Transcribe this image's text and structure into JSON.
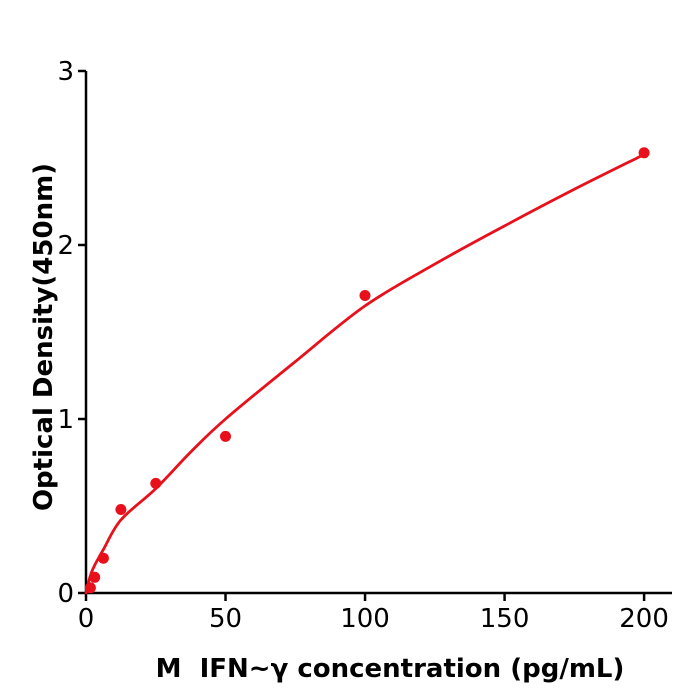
{
  "chart_data": {
    "type": "scatter",
    "title": "",
    "xlabel": "M  IFN~γ concentration (pg/mL)",
    "ylabel": "Optical Density(450nm)",
    "series": [
      {
        "name": "standard-curve-points",
        "x": [
          1.5625,
          3.125,
          6.25,
          12.5,
          25,
          50,
          100,
          200
        ],
        "y": [
          0.03,
          0.09,
          0.2,
          0.48,
          0.63,
          0.9,
          1.71,
          2.53
        ]
      }
    ],
    "fit_curve": {
      "name": "fitted-curve",
      "x": [
        0,
        1.56,
        3.125,
        6.25,
        12.5,
        25,
        37.5,
        50,
        75,
        100,
        125,
        150,
        175,
        200
      ],
      "y": [
        0,
        0.1,
        0.16,
        0.25,
        0.42,
        0.6,
        0.81,
        1.0,
        1.33,
        1.65,
        1.89,
        2.11,
        2.32,
        2.52
      ]
    },
    "x_ticks": [
      0,
      50,
      100,
      150,
      200
    ],
    "y_ticks": [
      0,
      1,
      2,
      3
    ],
    "xlim": [
      0,
      210
    ],
    "ylim": [
      0,
      3
    ],
    "grid": false,
    "legend": "none",
    "marker_color": "#e8101a",
    "line_color": "#e8101a",
    "axis_color": "#000000",
    "background_color": "#ffffff"
  }
}
